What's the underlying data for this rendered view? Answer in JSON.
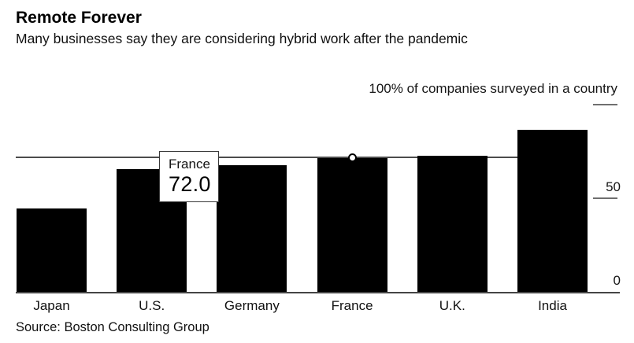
{
  "header": {
    "title": "Remote Forever",
    "subtitle": "Many businesses say they are considering hybrid work after the pandemic"
  },
  "axis": {
    "top_label": "100% of companies surveyed in a country",
    "tick_50": "50",
    "tick_0": "0"
  },
  "tooltip": {
    "label": "France",
    "value": "72.0"
  },
  "footer": {
    "source": "Source: Boston Consulting Group"
  },
  "colors": {
    "bar": "#000000",
    "crosshair_line": "#4c4c4c",
    "axis_tick": "#6f6f6f",
    "baseline": "#454545",
    "tooltip_background": "#ffffff",
    "background": "#ffffff"
  },
  "chart_data": {
    "type": "bar",
    "categories": [
      "Japan",
      "U.S.",
      "Germany",
      "France",
      "U.K.",
      "India"
    ],
    "values": [
      45,
      66,
      68,
      72,
      73,
      87
    ],
    "title": "Remote Forever",
    "subtitle": "Many businesses say they are considering hybrid work after the pandemic",
    "xlabel": "",
    "ylabel": "100% of companies surveyed in a country",
    "ylim": [
      0,
      100
    ],
    "yticks": [
      0,
      50,
      100
    ],
    "grid": false,
    "legend": false,
    "highlighted": {
      "category": "France",
      "value": 72.0,
      "marker": "white-circle",
      "crosshair_at": 72
    }
  }
}
